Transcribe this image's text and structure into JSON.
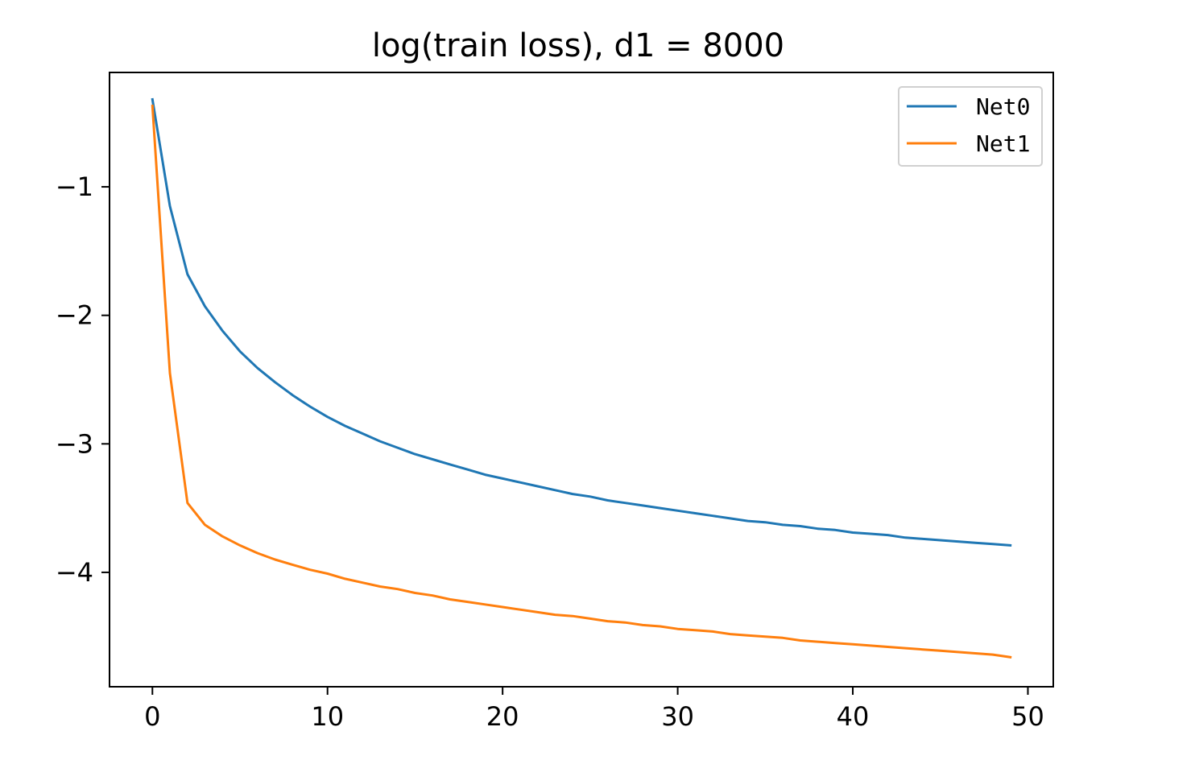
{
  "chart_data": {
    "type": "line",
    "title": "log(train loss), d1 = 8000",
    "xlabel": "",
    "ylabel": "",
    "xlim": [
      -2.45,
      51.45
    ],
    "ylim": [
      -4.89,
      -0.11
    ],
    "xticks": [
      0,
      10,
      20,
      30,
      40,
      50
    ],
    "xtick_labels": [
      "0",
      "10",
      "20",
      "30",
      "40",
      "50"
    ],
    "yticks": [
      -1,
      -2,
      -3,
      -4
    ],
    "ytick_labels": [
      "−1",
      "−2",
      "−3",
      "−4"
    ],
    "grid": false,
    "legend": {
      "placement": "top-right"
    },
    "series": [
      {
        "name": "Net0",
        "color": "#1f77b4",
        "x": [
          0,
          1,
          2,
          3,
          4,
          5,
          6,
          7,
          8,
          9,
          10,
          11,
          12,
          13,
          14,
          15,
          16,
          17,
          18,
          19,
          20,
          21,
          22,
          23,
          24,
          25,
          26,
          27,
          28,
          29,
          30,
          31,
          32,
          33,
          34,
          35,
          36,
          37,
          38,
          39,
          40,
          41,
          42,
          43,
          44,
          45,
          46,
          47,
          48,
          49
        ],
        "values": [
          -0.32,
          -1.15,
          -1.68,
          -1.93,
          -2.12,
          -2.28,
          -2.41,
          -2.52,
          -2.62,
          -2.71,
          -2.79,
          -2.86,
          -2.92,
          -2.98,
          -3.03,
          -3.08,
          -3.12,
          -3.16,
          -3.2,
          -3.24,
          -3.27,
          -3.3,
          -3.33,
          -3.36,
          -3.39,
          -3.41,
          -3.44,
          -3.46,
          -3.48,
          -3.5,
          -3.52,
          -3.54,
          -3.56,
          -3.58,
          -3.6,
          -3.61,
          -3.63,
          -3.64,
          -3.66,
          -3.67,
          -3.69,
          -3.7,
          -3.71,
          -3.73,
          -3.74,
          -3.75,
          -3.76,
          -3.77,
          -3.78,
          -3.79
        ]
      },
      {
        "name": "Net1",
        "color": "#ff7f0e",
        "x": [
          0,
          1,
          2,
          3,
          4,
          5,
          6,
          7,
          8,
          9,
          10,
          11,
          12,
          13,
          14,
          15,
          16,
          17,
          18,
          19,
          20,
          21,
          22,
          23,
          24,
          25,
          26,
          27,
          28,
          29,
          30,
          31,
          32,
          33,
          34,
          35,
          36,
          37,
          38,
          39,
          40,
          41,
          42,
          43,
          44,
          45,
          46,
          47,
          48,
          49
        ],
        "values": [
          -0.37,
          -2.45,
          -3.46,
          -3.63,
          -3.72,
          -3.79,
          -3.85,
          -3.9,
          -3.94,
          -3.98,
          -4.01,
          -4.05,
          -4.08,
          -4.11,
          -4.13,
          -4.16,
          -4.18,
          -4.21,
          -4.23,
          -4.25,
          -4.27,
          -4.29,
          -4.31,
          -4.33,
          -4.34,
          -4.36,
          -4.38,
          -4.39,
          -4.41,
          -4.42,
          -4.44,
          -4.45,
          -4.46,
          -4.48,
          -4.49,
          -4.5,
          -4.51,
          -4.53,
          -4.54,
          -4.55,
          -4.56,
          -4.57,
          -4.58,
          -4.59,
          -4.6,
          -4.61,
          -4.62,
          -4.63,
          -4.64,
          -4.66
        ]
      }
    ]
  }
}
